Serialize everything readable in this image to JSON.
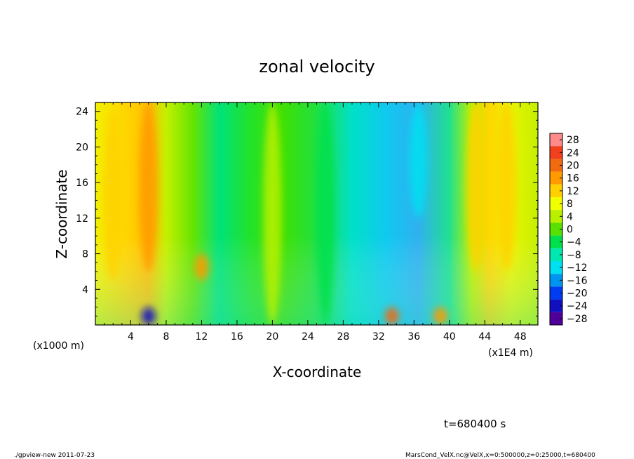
{
  "chart_data": {
    "type": "heatmap",
    "title": "zonal velocity",
    "xlabel": "X-coordinate",
    "ylabel": "Z-coordinate",
    "x_unit_note": "(x1E4 m)",
    "y_unit_note": "(x1000 m)",
    "xlim": [
      0,
      50
    ],
    "ylim": [
      0,
      25
    ],
    "x_ticks": [
      4,
      8,
      12,
      16,
      20,
      24,
      28,
      32,
      36,
      40,
      44,
      48
    ],
    "y_ticks": [
      4,
      8,
      12,
      16,
      20,
      24
    ],
    "colorbar": {
      "levels": [
        28,
        24,
        20,
        16,
        12,
        8,
        4,
        0,
        -4,
        -8,
        -12,
        -16,
        -20,
        -24,
        -28
      ],
      "colors": [
        "#ff8a8a",
        "#f2401e",
        "#f06a10",
        "#ff9a00",
        "#ffd100",
        "#f2ff00",
        "#b9f000",
        "#58e000",
        "#00e04a",
        "#00e8b0",
        "#00e0f0",
        "#0096f0",
        "#003cf0",
        "#1010c0",
        "#500098"
      ]
    },
    "features": [
      {
        "x": 2,
        "z_range": [
          5,
          24
        ],
        "value": 10
      },
      {
        "x": 6,
        "z_range": [
          6,
          25
        ],
        "value": 16
      },
      {
        "x": 12,
        "z_range": [
          5,
          8
        ],
        "value": 14
      },
      {
        "x": 20,
        "z_range": [
          0,
          25
        ],
        "value": 2
      },
      {
        "x": 26,
        "z_range": [
          0,
          25
        ],
        "value": -4
      },
      {
        "x": 36.5,
        "z_range": [
          12,
          25
        ],
        "value": -14
      },
      {
        "x": 43,
        "z_range": [
          6,
          25
        ],
        "value": 10
      },
      {
        "x": 46.5,
        "z_range": [
          6,
          25
        ],
        "value": 10
      },
      {
        "x": 6,
        "z_range": [
          0,
          2
        ],
        "value": -24
      },
      {
        "x": 33.5,
        "z_range": [
          0,
          2
        ],
        "value": 18
      },
      {
        "x": 39,
        "z_range": [
          0,
          2
        ],
        "value": 16
      }
    ]
  },
  "annotations": {
    "time": "t=680400 s",
    "footer_left": "./gpview-new  2011-07-23",
    "footer_right": "MarsCond_VelX.nc@VelX,x=0:500000,z=0:25000,t=680400"
  }
}
